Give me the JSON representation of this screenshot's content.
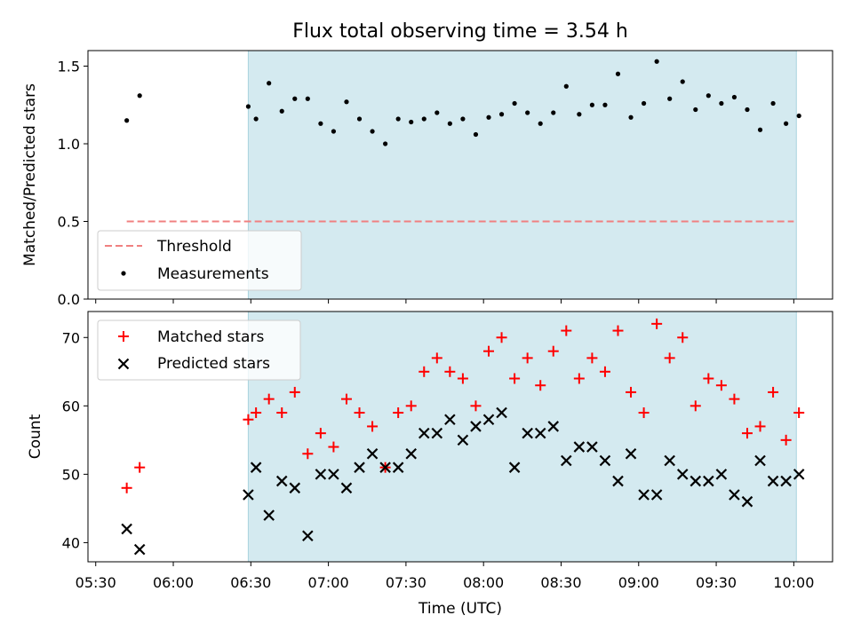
{
  "chart_data": [
    {
      "type": "scatter",
      "title": "Flux total observing time = 3.54 h",
      "ylabel": "Matched/Predicted stars",
      "xlabel": "",
      "ylim": [
        0,
        1.6
      ],
      "yticks": [
        "0.0",
        "0.5",
        "1.0",
        "1.5"
      ],
      "yticks_values": [
        0,
        0.5,
        1.0,
        1.5
      ],
      "observing_window": [
        "06:29",
        "10:01"
      ],
      "threshold": {
        "name": "Threshold",
        "value": 0.5,
        "x": [
          "05:42",
          "10:00"
        ],
        "color": "#f08080",
        "style": "dashed"
      },
      "legend": {
        "placement": "lower-left",
        "entries": [
          "Threshold",
          "Measurements"
        ]
      },
      "series": [
        {
          "name": "Measurements",
          "color": "#000000",
          "x": [
            "05:42",
            "05:47",
            "06:29",
            "06:32",
            "06:37",
            "06:42",
            "06:47",
            "06:52",
            "06:57",
            "07:02",
            "07:07",
            "07:12",
            "07:17",
            "07:22",
            "07:27",
            "07:32",
            "07:37",
            "07:42",
            "07:47",
            "07:52",
            "07:57",
            "08:02",
            "08:07",
            "08:12",
            "08:17",
            "08:22",
            "08:27",
            "08:32",
            "08:37",
            "08:42",
            "08:47",
            "08:52",
            "08:57",
            "09:02",
            "09:07",
            "09:12",
            "09:17",
            "09:22",
            "09:27",
            "09:32",
            "09:37",
            "09:42",
            "09:47",
            "09:52",
            "09:57",
            "10:02"
          ],
          "y": [
            1.15,
            1.31,
            1.24,
            1.16,
            1.39,
            1.21,
            1.29,
            1.29,
            1.13,
            1.08,
            1.27,
            1.16,
            1.08,
            1.0,
            1.16,
            1.14,
            1.16,
            1.2,
            1.13,
            1.16,
            1.06,
            1.17,
            1.19,
            1.26,
            1.2,
            1.13,
            1.2,
            1.37,
            1.19,
            1.25,
            1.25,
            1.45,
            1.17,
            1.26,
            1.53,
            1.29,
            1.4,
            1.22,
            1.31,
            1.26,
            1.3,
            1.22,
            1.09,
            1.26,
            1.13,
            1.18
          ]
        }
      ]
    },
    {
      "type": "scatter",
      "title": "",
      "ylabel": "Count",
      "xlabel": "Time (UTC)",
      "ylim": [
        37.2,
        73.8
      ],
      "yticks": [
        "40",
        "50",
        "60",
        "70"
      ],
      "yticks_values": [
        40,
        50,
        60,
        70
      ],
      "xticks": [
        "05:30",
        "06:00",
        "06:30",
        "07:00",
        "07:30",
        "08:00",
        "08:30",
        "09:00",
        "09:30",
        "10:00"
      ],
      "xlim": [
        "05:27",
        "10:15"
      ],
      "observing_window": [
        "06:29",
        "10:01"
      ],
      "legend": {
        "placement": "top-left",
        "entries": [
          "Matched stars",
          "Predicted stars"
        ]
      },
      "series": [
        {
          "name": "Matched stars",
          "marker": "+",
          "color": "#ff0000",
          "x": [
            "05:42",
            "05:47",
            "06:29",
            "06:32",
            "06:37",
            "06:42",
            "06:47",
            "06:52",
            "06:57",
            "07:02",
            "07:07",
            "07:12",
            "07:17",
            "07:22",
            "07:27",
            "07:32",
            "07:37",
            "07:42",
            "07:47",
            "07:52",
            "07:57",
            "08:02",
            "08:07",
            "08:12",
            "08:17",
            "08:22",
            "08:27",
            "08:32",
            "08:37",
            "08:42",
            "08:47",
            "08:52",
            "08:57",
            "09:02",
            "09:07",
            "09:12",
            "09:17",
            "09:22",
            "09:27",
            "09:32",
            "09:37",
            "09:42",
            "09:47",
            "09:52",
            "09:57",
            "10:02"
          ],
          "y": [
            48,
            51,
            58,
            59,
            61,
            59,
            62,
            53,
            56,
            54,
            61,
            59,
            57,
            51,
            59,
            60,
            65,
            67,
            65,
            64,
            60,
            68,
            70,
            64,
            67,
            63,
            68,
            71,
            64,
            67,
            65,
            71,
            62,
            59,
            72,
            67,
            70,
            60,
            64,
            63,
            61,
            56,
            57,
            62,
            55,
            59
          ]
        },
        {
          "name": "Predicted stars",
          "marker": "x",
          "color": "#000000",
          "x": [
            "05:42",
            "05:47",
            "06:29",
            "06:32",
            "06:37",
            "06:42",
            "06:47",
            "06:52",
            "06:57",
            "07:02",
            "07:07",
            "07:12",
            "07:17",
            "07:22",
            "07:27",
            "07:32",
            "07:37",
            "07:42",
            "07:47",
            "07:52",
            "07:57",
            "08:02",
            "08:07",
            "08:12",
            "08:17",
            "08:22",
            "08:27",
            "08:32",
            "08:37",
            "08:42",
            "08:47",
            "08:52",
            "08:57",
            "09:02",
            "09:07",
            "09:12",
            "09:17",
            "09:22",
            "09:27",
            "09:32",
            "09:37",
            "09:42",
            "09:47",
            "09:52",
            "09:57",
            "10:02"
          ],
          "y": [
            42,
            39,
            47,
            51,
            44,
            49,
            48,
            41,
            50,
            50,
            48,
            51,
            53,
            51,
            51,
            53,
            56,
            56,
            58,
            55,
            57,
            58,
            59,
            51,
            56,
            56,
            57,
            52,
            54,
            54,
            52,
            49,
            53,
            47,
            47,
            52,
            50,
            49,
            49,
            50,
            47,
            46,
            52,
            49,
            49,
            50
          ]
        }
      ]
    }
  ],
  "colors": {
    "observing_band": "#d4eaf0",
    "observing_band_edge": "#a9d3de"
  }
}
